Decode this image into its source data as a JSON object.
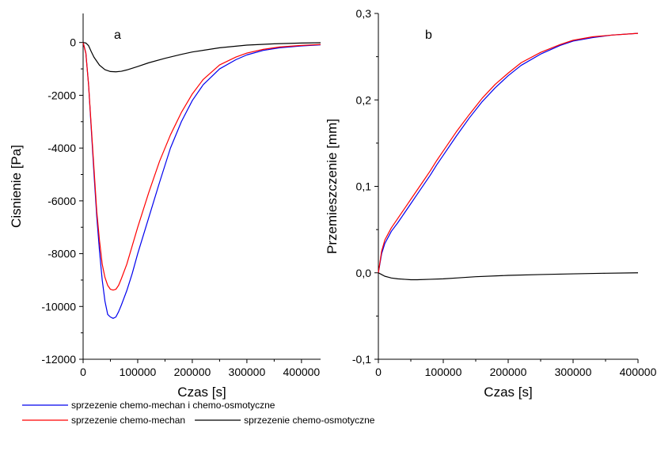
{
  "chart_data": [
    {
      "type": "line",
      "panel_label": "a",
      "xlabel": "Czas [s]",
      "ylabel": "Cisnienie [Pa]",
      "xlim": [
        0,
        435000
      ],
      "ylim": [
        -12000,
        1100
      ],
      "x_ticks": [
        0,
        100000,
        200000,
        300000,
        400000
      ],
      "x_tick_labels": [
        "0",
        "100000",
        "200000",
        "300000",
        "400000"
      ],
      "y_ticks": [
        0,
        -2000,
        -4000,
        -6000,
        -8000,
        -10000,
        -12000
      ],
      "y_tick_labels": [
        "0",
        "-2000",
        "-4000",
        "-6000",
        "-8000",
        "-10000",
        "-12000"
      ],
      "grid": false,
      "series": [
        {
          "name": "sprzezenie chemo-mechan i chemo-osmotyczne",
          "color": "#0000ee",
          "x": [
            0,
            5000,
            10000,
            15000,
            20000,
            25000,
            30000,
            35000,
            40000,
            45000,
            50000,
            55000,
            60000,
            65000,
            70000,
            80000,
            90000,
            100000,
            120000,
            140000,
            160000,
            180000,
            200000,
            220000,
            250000,
            280000,
            300000,
            330000,
            360000,
            400000,
            435000
          ],
          "y": [
            0,
            -400,
            -1600,
            -3300,
            -5000,
            -6600,
            -7900,
            -9000,
            -9800,
            -10300,
            -10400,
            -10450,
            -10400,
            -10200,
            -9950,
            -9400,
            -8750,
            -8000,
            -6650,
            -5300,
            -4000,
            -3000,
            -2200,
            -1600,
            -1000,
            -650,
            -470,
            -300,
            -200,
            -130,
            -90
          ]
        },
        {
          "name": "sprzezenie chemo-mechan",
          "color": "#ff0000",
          "x": [
            0,
            5000,
            10000,
            15000,
            20000,
            25000,
            30000,
            35000,
            40000,
            45000,
            50000,
            55000,
            60000,
            65000,
            70000,
            80000,
            90000,
            100000,
            120000,
            140000,
            160000,
            180000,
            200000,
            220000,
            250000,
            280000,
            300000,
            330000,
            360000,
            400000,
            435000
          ],
          "y": [
            0,
            -400,
            -1600,
            -3200,
            -4800,
            -6400,
            -7500,
            -8400,
            -8900,
            -9200,
            -9350,
            -9380,
            -9350,
            -9200,
            -8950,
            -8400,
            -7700,
            -7000,
            -5700,
            -4500,
            -3500,
            -2650,
            -1950,
            -1400,
            -850,
            -550,
            -400,
            -260,
            -170,
            -110,
            -75
          ]
        },
        {
          "name": "sprzezenie chemo-osmotyczne",
          "color": "#000000",
          "x": [
            0,
            5000,
            10000,
            15000,
            20000,
            30000,
            40000,
            50000,
            60000,
            70000,
            80000,
            100000,
            120000,
            150000,
            180000,
            200000,
            250000,
            300000,
            350000,
            400000,
            435000
          ],
          "y": [
            0,
            -20,
            -120,
            -350,
            -560,
            -860,
            -1030,
            -1100,
            -1110,
            -1090,
            -1040,
            -910,
            -770,
            -600,
            -450,
            -360,
            -200,
            -100,
            -50,
            -20,
            -10
          ]
        }
      ]
    },
    {
      "type": "line",
      "panel_label": "b",
      "xlabel": "Czas [s]",
      "ylabel": "Przemieszczenie [mm]",
      "xlim": [
        0,
        400000
      ],
      "ylim": [
        -0.1,
        0.3
      ],
      "x_ticks": [
        0,
        100000,
        200000,
        300000,
        400000
      ],
      "x_tick_labels": [
        "0",
        "100000",
        "200000",
        "300000",
        "400000"
      ],
      "y_ticks": [
        0.3,
        0.2,
        0.1,
        0.0,
        -0.1
      ],
      "y_tick_labels": [
        "0,3",
        "0,2",
        "0,1",
        "0,0",
        "-0,1"
      ],
      "grid": false,
      "series": [
        {
          "name": "sprzezenie chemo-mechan i chemo-osmotyczne",
          "color": "#0000ee",
          "x": [
            0,
            5000,
            10000,
            15000,
            20000,
            30000,
            40000,
            50000,
            60000,
            70000,
            80000,
            90000,
            100000,
            120000,
            140000,
            160000,
            180000,
            200000,
            220000,
            250000,
            280000,
            300000,
            330000,
            360000,
            400000
          ],
          "y": [
            0,
            0.022,
            0.034,
            0.041,
            0.048,
            0.058,
            0.069,
            0.08,
            0.091,
            0.102,
            0.113,
            0.125,
            0.136,
            0.158,
            0.179,
            0.198,
            0.214,
            0.228,
            0.24,
            0.253,
            0.263,
            0.268,
            0.272,
            0.275,
            0.277
          ]
        },
        {
          "name": "sprzezenie chemo-mechan",
          "color": "#ff0000",
          "x": [
            0,
            5000,
            10000,
            15000,
            20000,
            30000,
            40000,
            50000,
            60000,
            70000,
            80000,
            90000,
            100000,
            120000,
            140000,
            160000,
            180000,
            200000,
            220000,
            250000,
            280000,
            300000,
            330000,
            360000,
            400000
          ],
          "y": [
            0,
            0.025,
            0.038,
            0.045,
            0.052,
            0.063,
            0.074,
            0.085,
            0.096,
            0.107,
            0.118,
            0.13,
            0.141,
            0.163,
            0.183,
            0.202,
            0.218,
            0.231,
            0.243,
            0.255,
            0.264,
            0.269,
            0.273,
            0.275,
            0.277
          ]
        },
        {
          "name": "sprzezenie chemo-osmotyczne",
          "color": "#000000",
          "x": [
            0,
            5000,
            10000,
            15000,
            20000,
            30000,
            40000,
            50000,
            60000,
            80000,
            100000,
            120000,
            150000,
            200000,
            250000,
            300000,
            350000,
            400000
          ],
          "y": [
            0,
            -0.002,
            -0.004,
            -0.005,
            -0.006,
            -0.007,
            -0.0075,
            -0.008,
            -0.008,
            -0.0075,
            -0.007,
            -0.006,
            -0.0045,
            -0.003,
            -0.002,
            -0.0012,
            -0.0005,
            0
          ]
        }
      ]
    }
  ],
  "legend": {
    "placement": "bottom-left",
    "entries": [
      {
        "label": "sprzezenie chemo-mechan i chemo-osmotyczne",
        "color": "#0000ee"
      },
      {
        "label": "sprzezenie chemo-mechan",
        "color": "#ff0000"
      },
      {
        "label": "sprzezenie chemo-osmotyczne",
        "color": "#000000"
      }
    ]
  }
}
